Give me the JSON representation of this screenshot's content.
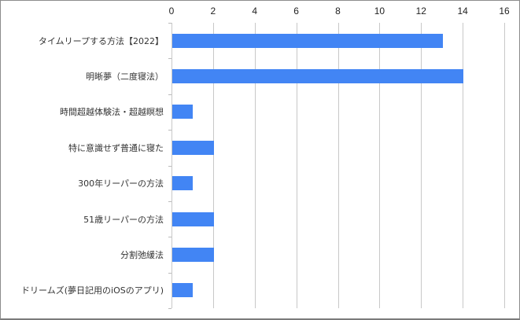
{
  "chart_data": {
    "type": "bar",
    "orientation": "horizontal",
    "title": "",
    "xlabel": "",
    "ylabel": "",
    "xlim": [
      0,
      16
    ],
    "x_ticks": [
      "0",
      "2",
      "4",
      "6",
      "8",
      "10",
      "12",
      "14",
      "16"
    ],
    "grid": true,
    "legend": null,
    "bar_color": "#4285f4",
    "categories": [
      "タイムリープする方法【2022】",
      "明晰夢（二度寝法）",
      "時間超越体験法・超越瞑想",
      "特に意識せず普通に寝た",
      "300年リーパーの方法",
      "51歳リーパーの方法",
      "分割弛緩法",
      "ドリームズ(夢日記用のiOSのアプリ)"
    ],
    "values": [
      13,
      14,
      1,
      2,
      1,
      2,
      2,
      1
    ]
  }
}
